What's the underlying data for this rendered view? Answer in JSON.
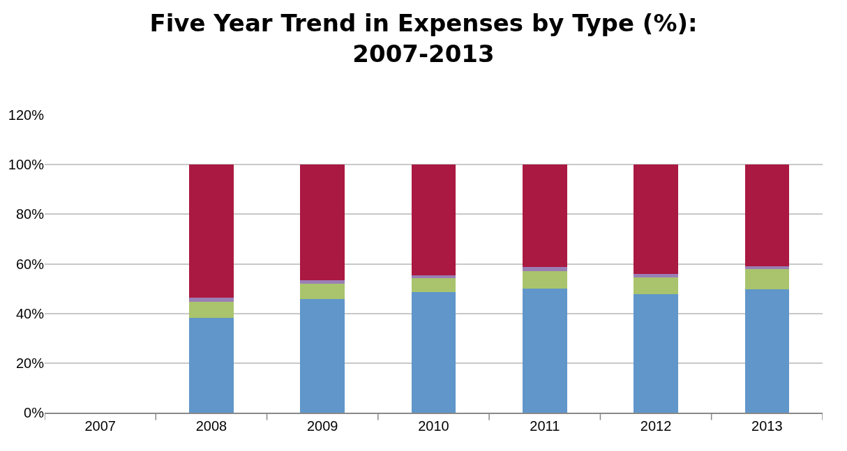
{
  "chart_data": {
    "type": "bar",
    "stacked": true,
    "title": "Five Year Trend in Expenses by Type (%):\n2007-2013",
    "categories": [
      "2007",
      "2008",
      "2009",
      "2010",
      "2011",
      "2012",
      "2013"
    ],
    "series": [
      {
        "color": "#6096ca",
        "values": [
          null,
          38.2,
          45.8,
          48.6,
          50.1,
          47.8,
          49.8
        ]
      },
      {
        "color": "#a9c46c",
        "values": [
          null,
          6.5,
          6.3,
          5.7,
          7.0,
          6.8,
          8.0
        ]
      },
      {
        "color": "#9a7fb5",
        "values": [
          null,
          1.7,
          1.2,
          1.1,
          1.6,
          1.2,
          1.1
        ]
      },
      {
        "color": "#aa1941",
        "values": [
          null,
          53.6,
          46.7,
          44.6,
          41.3,
          44.2,
          41.1
        ]
      }
    ],
    "ylim": [
      0,
      120
    ],
    "yticks": [
      {
        "value": 0,
        "label": "0%"
      },
      {
        "value": 20,
        "label": "20%"
      },
      {
        "value": 40,
        "label": "40%"
      },
      {
        "value": 60,
        "label": "60%"
      },
      {
        "value": 80,
        "label": "80%"
      },
      {
        "value": 100,
        "label": "100%"
      },
      {
        "value": 120,
        "label": "120%"
      }
    ],
    "grid": "y"
  }
}
